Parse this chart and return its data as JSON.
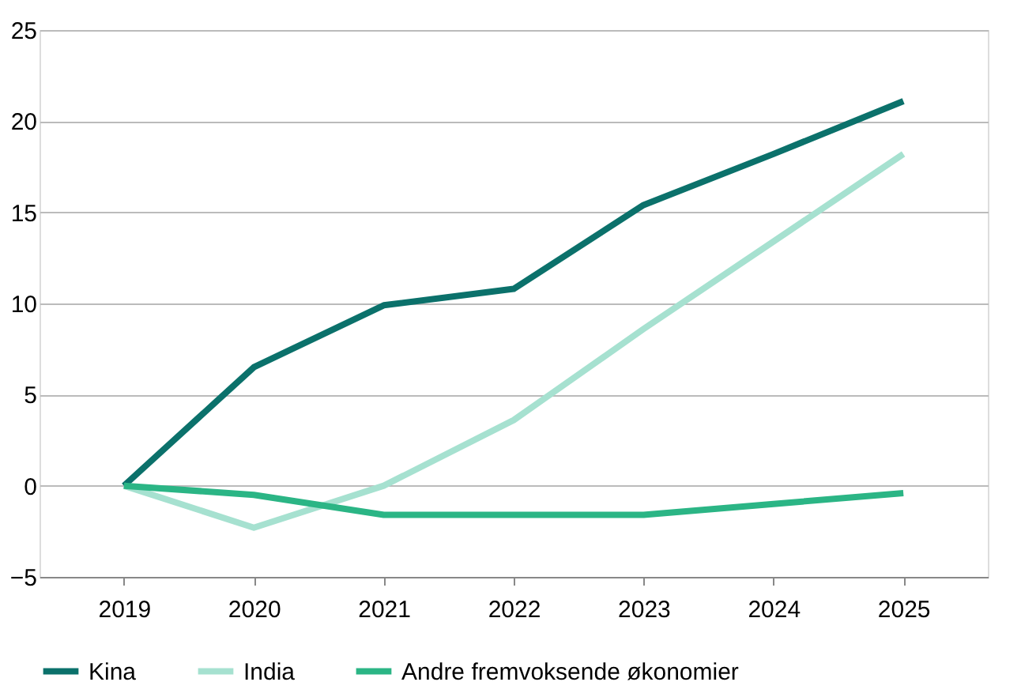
{
  "chart_data": {
    "type": "line",
    "categories": [
      "2019",
      "2020",
      "2021",
      "2022",
      "2023",
      "2024",
      "2025"
    ],
    "series": [
      {
        "name": "Kina",
        "color": "#0b716b",
        "values": [
          0,
          6.5,
          9.9,
          10.8,
          15.4,
          18.2,
          21.1
        ]
      },
      {
        "name": "India",
        "color": "#a6e1d0",
        "values": [
          0,
          -2.3,
          0,
          3.6,
          8.6,
          13.4,
          18.2
        ]
      },
      {
        "name": "Andre fremvoksende økonomier",
        "color": "#2bb585",
        "values": [
          0,
          -0.5,
          -1.6,
          -1.6,
          -1.6,
          -1.0,
          -0.4
        ]
      }
    ],
    "ylim": [
      -5,
      25
    ],
    "yticks": [
      -5,
      0,
      5,
      10,
      15,
      20,
      25
    ],
    "grid": "y",
    "legend": "bottom",
    "marker": "none",
    "line_style": "solid"
  }
}
